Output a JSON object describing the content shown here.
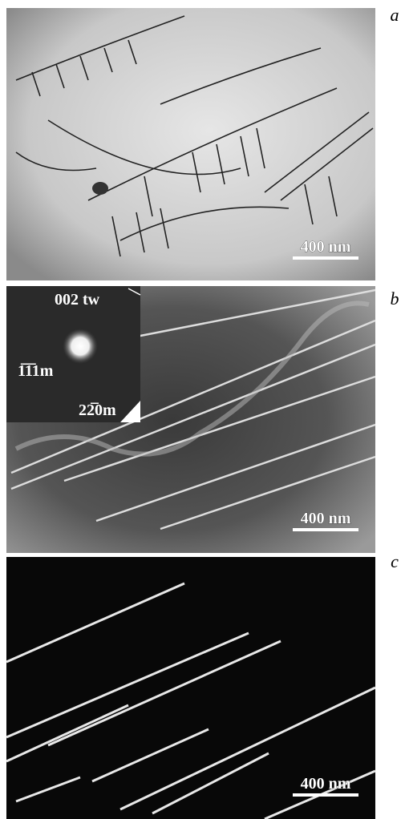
{
  "panels": [
    {
      "label": "a",
      "scale_bar": "400 nm"
    },
    {
      "label": "b",
      "scale_bar": "400 nm",
      "inset": {
        "labels": [
          "002 tw",
          "1̅1̅1m",
          "22̅0m"
        ]
      }
    },
    {
      "label": "c",
      "scale_bar": "400 nm"
    }
  ]
}
